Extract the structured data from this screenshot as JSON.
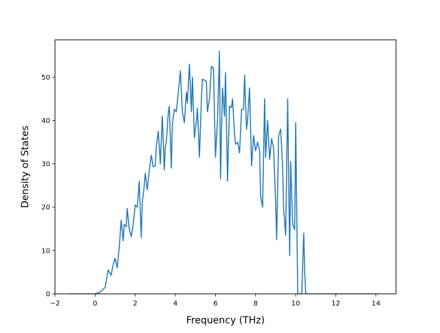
{
  "chart_data": {
    "type": "line",
    "xlabel": "Frequency (THz)",
    "ylabel": "Density of States",
    "xlim": [
      -2.0,
      15.0
    ],
    "ylim": [
      0,
      58.6
    ],
    "xticks": [
      -2,
      0,
      2,
      4,
      6,
      8,
      10,
      12,
      14
    ],
    "xtick_labels": [
      "−2",
      "0",
      "2",
      "4",
      "6",
      "8",
      "10",
      "12",
      "14"
    ],
    "yticks": [
      0,
      10,
      20,
      30,
      40,
      50
    ],
    "ytick_labels": [
      "0",
      "10",
      "20",
      "30",
      "40",
      "50"
    ],
    "grid": false,
    "line_color": "#1f77b4",
    "series": [
      {
        "x": [
          -1.3,
          -0.4,
          0.0,
          0.2,
          0.35,
          0.5,
          0.65,
          0.8,
          0.9,
          1.0,
          1.1,
          1.2,
          1.3,
          1.4,
          1.45,
          1.55,
          1.6,
          1.7,
          1.8,
          1.9,
          2.0,
          2.1,
          2.2,
          2.3,
          2.35,
          2.45,
          2.5,
          2.6,
          2.7,
          2.8,
          2.9,
          3.0,
          3.05,
          3.15,
          3.25,
          3.35,
          3.45,
          3.5,
          3.55,
          3.65,
          3.7,
          3.8,
          3.85,
          3.95,
          4.05,
          4.15,
          4.25,
          4.35,
          4.45,
          4.55,
          4.6,
          4.7,
          4.8,
          4.85,
          4.95,
          5.05,
          5.1,
          5.2,
          5.3,
          5.35,
          5.45,
          5.55,
          5.6,
          5.7,
          5.8,
          5.9,
          6.0,
          6.1,
          6.2,
          6.25,
          6.35,
          6.45,
          6.5,
          6.6,
          6.7,
          6.8,
          6.85,
          6.95,
          7.0,
          7.1,
          7.2,
          7.3,
          7.4,
          7.45,
          7.55,
          7.6,
          7.7,
          7.8,
          7.9,
          8.0,
          8.1,
          8.2,
          8.25,
          8.35,
          8.45,
          8.5,
          8.6,
          8.7,
          8.8,
          8.9,
          9.0,
          9.05,
          9.15,
          9.25,
          9.35,
          9.4,
          9.5,
          9.6,
          9.7,
          9.75,
          9.85,
          9.95,
          10.0,
          10.1,
          10.2,
          10.3,
          10.4,
          10.45,
          10.5,
          10.55,
          10.6,
          10.7,
          11.0,
          12.0,
          13.0,
          14.2
        ],
        "y": [
          0,
          0,
          0,
          0.3,
          0.8,
          1.5,
          5.5,
          4.3,
          6.8,
          8.2,
          6.0,
          10.5,
          17.0,
          12.2,
          16.0,
          15.5,
          19.7,
          15.0,
          13.2,
          16.0,
          20.5,
          20.0,
          26.0,
          13.0,
          21.0,
          25.0,
          27.8,
          24.0,
          28.5,
          32.0,
          29.3,
          29.6,
          34.0,
          37.5,
          30.0,
          41.0,
          28.6,
          34.0,
          35.0,
          42.0,
          43.3,
          29.0,
          39.0,
          42.6,
          42.0,
          46.5,
          51.5,
          42.0,
          39.5,
          46.5,
          44.0,
          53.0,
          42.0,
          50.0,
          36.0,
          40.0,
          42.8,
          31.5,
          45.0,
          49.5,
          49.3,
          49.0,
          42.0,
          45.0,
          52.5,
          52.0,
          31.5,
          40.0,
          56.0,
          26.5,
          47.5,
          41.0,
          51.0,
          26.0,
          43.3,
          43.0,
          45.0,
          37.0,
          34.5,
          35.0,
          32.5,
          42.5,
          42.6,
          50.5,
          38.0,
          40.0,
          47.5,
          29.5,
          36.5,
          33.0,
          35.0,
          33.0,
          22.5,
          20.0,
          45.0,
          31.5,
          40.0,
          31.0,
          35.8,
          33.5,
          21.0,
          12.5,
          36.5,
          38.0,
          29.0,
          19.5,
          13.5,
          45.0,
          8.8,
          30.5,
          16.0,
          14.8,
          39.5,
          0,
          0,
          0,
          14.0,
          5.0,
          0,
          0,
          0,
          0,
          0,
          0,
          0,
          0
        ]
      }
    ]
  }
}
